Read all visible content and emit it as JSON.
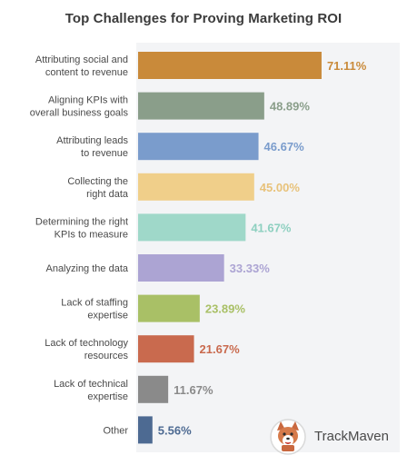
{
  "chart_data": {
    "type": "bar",
    "orientation": "horizontal",
    "title": "Top Challenges for Proving Marketing ROI",
    "xlabel": "",
    "ylabel": "",
    "xlim": [
      0,
      100
    ],
    "grid": false,
    "categories": [
      [
        "Attributing social and",
        "content to revenue"
      ],
      [
        "Aligning KPIs with",
        "overall business goals"
      ],
      [
        "Attributing leads",
        "to revenue"
      ],
      [
        "Collecting the",
        "right data"
      ],
      [
        "Determining the right",
        "KPIs to measure"
      ],
      [
        "Analyzing the data"
      ],
      [
        "Lack of staffing",
        "expertise"
      ],
      [
        "Lack of technology",
        "resources"
      ],
      [
        "Lack of technical",
        "expertise"
      ],
      [
        "Other"
      ]
    ],
    "values": [
      71.11,
      48.89,
      46.67,
      45.0,
      41.67,
      33.33,
      23.89,
      21.67,
      11.67,
      5.56
    ],
    "value_labels": [
      "71.11%",
      "48.89%",
      "46.67%",
      "45.00%",
      "41.67%",
      "33.33%",
      "23.89%",
      "21.67%",
      "11.67%",
      "5.56%"
    ],
    "colors": [
      "#c98a3a",
      "#8a9e8a",
      "#7a9ccc",
      "#f0cf8a",
      "#9fd8c9",
      "#aca4d3",
      "#a9c066",
      "#c96a4e",
      "#8a8a8a",
      "#4d6a92"
    ],
    "label_colors": [
      "#ffffff",
      "#8a9e8a",
      "#7a9ccc",
      "#e8c27a",
      "#8ed0c0",
      "#aca4d3",
      "#a9c066",
      "#c96a4e",
      "#8a8a8a",
      "#4d6a92"
    ]
  },
  "brand": {
    "name": "TrackMaven",
    "logo_icon": "corgi-logo-icon"
  }
}
